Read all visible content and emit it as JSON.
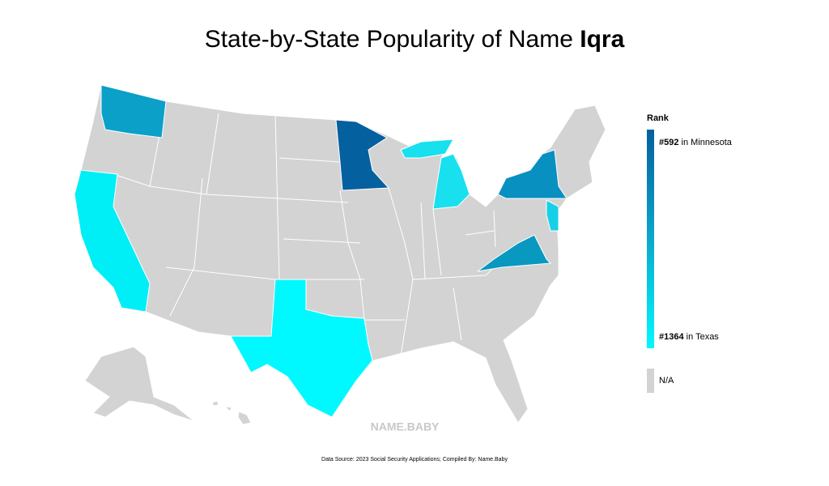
{
  "header": {
    "title": "State-by-State Popularity of Name",
    "title_name": "Iqra"
  },
  "legend": {
    "title": "Rank",
    "high": {
      "rank": "#592",
      "label": "in Minnesota"
    },
    "low": {
      "rank": "#1364",
      "label": "in Texas"
    },
    "na": "N/A"
  },
  "watermark": "NAME.BABY",
  "footer": {
    "source": "Data Source: 2023 Social Security Applications; Compiled By: Name.Baby"
  }
}
